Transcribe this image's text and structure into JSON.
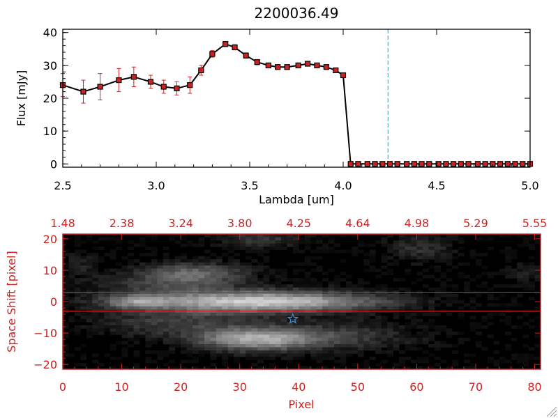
{
  "colors": {
    "axis_top": "#000000",
    "axis_bottom": "#cc2222",
    "series_line": "#000000",
    "markers": "#cc2222",
    "errorbars": "#cc2222",
    "cutoff_line": "#5aa9c4",
    "slit_lines": "#cc2222",
    "star": "#3d8fd6",
    "image_bg": "#000000"
  },
  "chart_data": [
    {
      "type": "line",
      "title": "2200036.49",
      "xlabel": "Lambda [um]",
      "ylabel": "Flux [mJy]",
      "xlim": [
        2.5,
        5.0
      ],
      "ylim": [
        -1,
        41
      ],
      "xticks": [
        2.5,
        3.0,
        3.5,
        4.0,
        4.5,
        5.0
      ],
      "xtick_labels": [
        "2.5",
        "3.0",
        "3.5",
        "4.0",
        "4.5",
        "5.0"
      ],
      "yticks": [
        0,
        10,
        20,
        30,
        40
      ],
      "ytick_labels": [
        "0",
        "10",
        "20",
        "30",
        "40"
      ],
      "cutoff_x": 4.24,
      "x": [
        2.5,
        2.61,
        2.7,
        2.8,
        2.88,
        2.97,
        3.04,
        3.11,
        3.18,
        3.24,
        3.3,
        3.37,
        3.42,
        3.48,
        3.54,
        3.6,
        3.65,
        3.7,
        3.76,
        3.81,
        3.86,
        3.91,
        3.96,
        4.0,
        4.04,
        4.08,
        4.13,
        4.17,
        4.21,
        4.25,
        4.29,
        4.34,
        4.38,
        4.42,
        4.46,
        4.51,
        4.55,
        4.59,
        4.63,
        4.67,
        4.72,
        4.76,
        4.8,
        4.84,
        4.88,
        4.92,
        4.96,
        5.0
      ],
      "y": [
        24.0,
        22.0,
        23.5,
        25.5,
        26.5,
        25.0,
        23.5,
        23.0,
        24.0,
        28.5,
        33.5,
        36.5,
        35.5,
        33.0,
        31.0,
        30.0,
        29.5,
        29.5,
        30.0,
        30.5,
        30.0,
        29.5,
        28.5,
        27.0,
        0,
        0,
        0,
        0,
        0,
        0,
        0,
        0,
        0,
        0,
        0,
        0,
        0,
        0,
        0,
        0,
        0,
        0,
        0,
        0,
        0,
        0,
        0,
        0
      ],
      "yerr": [
        3.5,
        3.5,
        4.0,
        3.5,
        3.0,
        2.0,
        2.0,
        2.0,
        2.5,
        1.5,
        1.0,
        0.8,
        0.8,
        0.8,
        0.8,
        0.6,
        0.6,
        0.6,
        0.6,
        0.6,
        0.6,
        0.6,
        0.6,
        0.6,
        0,
        0,
        0,
        0,
        0,
        0,
        0,
        0,
        0,
        0,
        0,
        0,
        0,
        0,
        0,
        0,
        0,
        0,
        0,
        0,
        0,
        0,
        0,
        0
      ]
    },
    {
      "type": "heatmap",
      "xlabel": "Pixel",
      "ylabel": "Space Shift [pixel]",
      "xlim": [
        0,
        81
      ],
      "ylim": [
        -21.5,
        21.5
      ],
      "xticks": [
        0,
        10,
        20,
        30,
        40,
        50,
        60,
        70,
        80
      ],
      "xtick_labels": [
        "0",
        "10",
        "20",
        "30",
        "40",
        "50",
        "60",
        "70",
        "80"
      ],
      "yticks": [
        -20,
        -10,
        0,
        10,
        20
      ],
      "ytick_labels": [
        "−20",
        "−10",
        "0",
        "10",
        "20"
      ],
      "top_tick_labels": [
        "1.48",
        "2.38",
        "3.24",
        "3.80",
        "4.25",
        "4.64",
        "4.98",
        "5.29",
        "5.55"
      ],
      "slit_lines_y": [
        3,
        -3
      ],
      "star_marker": {
        "x": 39,
        "y": -5.5
      },
      "emission_components": [
        {
          "x": 30,
          "y": 0,
          "sx": 14,
          "sy": 2.6,
          "amp": 160,
          "desc": "main trace"
        },
        {
          "x": 12,
          "y": 0,
          "sx": 3.5,
          "sy": 1.4,
          "amp": 90,
          "desc": "trace peak"
        },
        {
          "x": 40,
          "y": 0,
          "sx": 12,
          "sy": 1.8,
          "amp": 60,
          "desc": "trace tail"
        },
        {
          "x": 32,
          "y": -12,
          "sx": 7,
          "sy": 2.6,
          "amp": 150,
          "desc": "lower blob"
        },
        {
          "x": 45,
          "y": -11,
          "sx": 10,
          "sy": 3,
          "amp": 60,
          "desc": "lower tail"
        },
        {
          "x": 18,
          "y": -7,
          "sx": 9,
          "sy": 3,
          "amp": 55,
          "desc": "lower-left haze"
        },
        {
          "x": 22,
          "y": 9,
          "sx": 6,
          "sy": 2.5,
          "amp": 90,
          "desc": "upper blob"
        },
        {
          "x": 16,
          "y": 6,
          "sx": 8,
          "sy": 3,
          "amp": 45,
          "desc": "upper haze"
        },
        {
          "x": 33,
          "y": 20,
          "sx": 5,
          "sy": 2,
          "amp": 55,
          "desc": "top patch"
        },
        {
          "x": 60,
          "y": 17,
          "sx": 4,
          "sy": 3,
          "amp": 45,
          "desc": "top-right patch"
        },
        {
          "x": 78,
          "y": 9,
          "sx": 2,
          "sy": 2,
          "amp": 35,
          "desc": "right edge patch"
        },
        {
          "x": 2,
          "y": 12,
          "sx": 2,
          "sy": 3,
          "amp": 30,
          "desc": "left edge patch"
        }
      ]
    }
  ]
}
